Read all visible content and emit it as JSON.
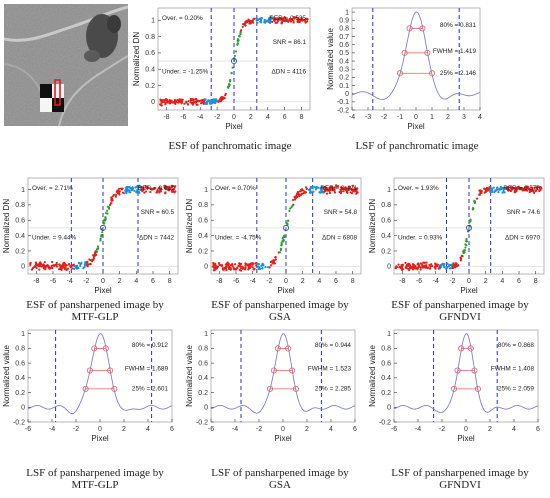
{
  "figure": {
    "satellite_image": {
      "label": "panchromatic image tile with checkerboard target"
    },
    "captions": {
      "esf_pan": "ESF of panchromatic image",
      "lsf_pan": "LSF of panchromatic image",
      "esf_mtf_glp": [
        "ESF of pansharpened image by",
        "MTF-GLP"
      ],
      "esf_gsa": [
        "ESF of pansharpened image by",
        "GSA"
      ],
      "esf_gfndvi": [
        "ESF of pansharpened image by",
        "GFNDVI"
      ],
      "lsf_mtf_glp": [
        "LSF of pansharpened image by",
        "MTF-GLP"
      ],
      "lsf_gsa": [
        "LSF of pansharpened image by",
        "GSA"
      ],
      "lsf_gfndvi": [
        "LSF of pansharpened image by",
        "GFNDVI"
      ]
    },
    "colors": {
      "esf_points": "#e0201b",
      "esf_mid": "#2aa12a",
      "esf_tail": "#1f8fd6",
      "boundary_line": "#2630c8",
      "lsf_line": "#8080c8",
      "lsf_markers": "#e06060",
      "axis": "#333333"
    }
  },
  "chart_data": [
    {
      "id": "esf_pan",
      "type": "scatter",
      "xlabel": "Pixel",
      "ylabel": "Normalized DN",
      "xlim": [
        -9,
        9
      ],
      "ylim": [
        -0.1,
        1.15
      ],
      "xticks": [
        -8,
        -6,
        -4,
        -2,
        0,
        2,
        4,
        6,
        8
      ],
      "yticks": [
        0,
        0.2,
        0.4,
        0.6,
        0.8,
        1
      ],
      "ytick_labels": [
        "0",
        "0.2",
        "0.4",
        "0.6",
        "0.8",
        "1"
      ],
      "boundaries": [
        -2.7,
        0,
        2.7
      ],
      "annotations": [
        "Over. = 0.20%",
        "Under. = -1.25%",
        "RER = 0.535",
        "SNR = 86.1",
        "ΔDN = 4116"
      ],
      "sharpness": 1.3,
      "noise": 0.03
    },
    {
      "id": "lsf_pan",
      "type": "line",
      "xlabel": "Pixel",
      "ylabel": "Normalized value",
      "xlim": [
        -4,
        4
      ],
      "ylim": [
        -0.2,
        1.05
      ],
      "xticks": [
        -4,
        -3,
        -2,
        -1,
        0,
        1,
        2,
        3,
        4
      ],
      "yticks": [
        -0.2,
        -0.1,
        0,
        0.1,
        0.2,
        0.3,
        0.4,
        0.5,
        0.6,
        0.7,
        0.8,
        0.9,
        1
      ],
      "ytick_labels": [
        "-0.2",
        "-0.1",
        "0",
        "0.1",
        "0.2",
        "0.3",
        "0.4",
        "0.5",
        "0.6",
        "0.7",
        "0.8",
        "0.9",
        "1"
      ],
      "boundaries": [
        -2.7,
        2.7
      ],
      "annotations": [
        "80% = 0.831",
        "FWHM = 1.419",
        "25% = 2.146"
      ],
      "fwhm": 1.419
    },
    {
      "id": "esf_mtf_glp",
      "type": "scatter",
      "xlabel": "Pixel",
      "ylabel": "Normalized DN",
      "xlim": [
        -9,
        9
      ],
      "ylim": [
        -0.1,
        1.15
      ],
      "xticks": [
        -8,
        -6,
        -4,
        -2,
        0,
        2,
        4,
        6,
        8
      ],
      "yticks": [
        0,
        0.2,
        0.4,
        0.6,
        0.8,
        1
      ],
      "ytick_labels": [
        "0",
        "0.2",
        "0.4",
        "0.6",
        "0.8",
        "1"
      ],
      "boundaries": [
        -3.8,
        0,
        4.2
      ],
      "annotations": [
        "Over. = 2.71%",
        "Under. = 9.44%",
        "RER = 0.411",
        "SNR = 60.5",
        "ΔDN = 7442"
      ],
      "sharpness": 1.0,
      "noise": 0.04
    },
    {
      "id": "esf_gsa",
      "type": "scatter",
      "xlabel": "Pixel",
      "ylabel": "Normalized DN",
      "xlim": [
        -9,
        9
      ],
      "ylim": [
        -0.1,
        1.15
      ],
      "xticks": [
        -8,
        -6,
        -4,
        -2,
        0,
        2,
        4,
        6,
        8
      ],
      "yticks": [
        0,
        0.2,
        0.4,
        0.6,
        0.8,
        1
      ],
      "ytick_labels": [
        "0",
        "0.2",
        "0.4",
        "0.6",
        "0.8",
        "1"
      ],
      "boundaries": [
        -3.5,
        0,
        3.2
      ],
      "annotations": [
        "Over. = 0.70%",
        "Under. = -4.75%",
        "RER = 0.421",
        "SNR = 54.8",
        "ΔDN = 6808"
      ],
      "sharpness": 1.05,
      "noise": 0.04
    },
    {
      "id": "esf_gfndvi",
      "type": "scatter",
      "xlabel": "Pixel",
      "ylabel": "Normalized DN",
      "xlim": [
        -9,
        9
      ],
      "ylim": [
        -0.1,
        1.15
      ],
      "xticks": [
        -8,
        -6,
        -4,
        -2,
        0,
        2,
        4,
        6,
        8
      ],
      "yticks": [
        0,
        0.2,
        0.4,
        0.6,
        0.8,
        1
      ],
      "ytick_labels": [
        "0",
        "0.2",
        "0.4",
        "0.6",
        "0.8",
        "1"
      ],
      "boundaries": [
        -2.7,
        0,
        2.6
      ],
      "annotations": [
        "Over. = 1.93%",
        "Under. = 0.93%",
        "RER = 0.570",
        "SNR = 74.6",
        "ΔDN = 6970"
      ],
      "sharpness": 1.35,
      "noise": 0.035
    },
    {
      "id": "lsf_mtf_glp",
      "type": "line",
      "xlabel": "Pixel",
      "ylabel": "Normalized value",
      "xlim": [
        -6,
        6
      ],
      "ylim": [
        -0.2,
        1.05
      ],
      "xticks": [
        -6,
        -4,
        -2,
        0,
        2,
        4,
        6
      ],
      "yticks": [
        -0.2,
        0,
        0.2,
        0.4,
        0.6,
        0.8,
        1
      ],
      "ytick_labels": [
        "-0.2",
        "0",
        "0.2",
        "0.4",
        "0.6",
        "0.8",
        "1"
      ],
      "boundaries": [
        -3.7,
        4.3
      ],
      "annotations": [
        "80% = 0.912",
        "FWHM = 1.689",
        "25% = 2.601"
      ],
      "fwhm": 1.689
    },
    {
      "id": "lsf_gsa",
      "type": "line",
      "xlabel": "Pixel",
      "ylabel": "Normalized value",
      "xlim": [
        -6,
        6
      ],
      "ylim": [
        -0.2,
        1.05
      ],
      "xticks": [
        -6,
        -4,
        -2,
        0,
        2,
        4,
        6
      ],
      "yticks": [
        -0.2,
        0,
        0.2,
        0.4,
        0.6,
        0.8,
        1
      ],
      "ytick_labels": [
        "-0.2",
        "0",
        "0.2",
        "0.4",
        "0.6",
        "0.8",
        "1"
      ],
      "boundaries": [
        -3.5,
        3.2
      ],
      "annotations": [
        "80% = 0.944",
        "FWHM = 1.523",
        "25% = 2.285"
      ],
      "fwhm": 1.523
    },
    {
      "id": "lsf_gfndvi",
      "type": "line",
      "xlabel": "Pixel",
      "ylabel": "Normalized value",
      "xlim": [
        -6,
        6
      ],
      "ylim": [
        -0.2,
        1.05
      ],
      "xticks": [
        -6,
        -4,
        -2,
        0,
        2,
        4,
        6
      ],
      "yticks": [
        -0.2,
        0,
        0.2,
        0.4,
        0.6,
        0.8,
        1
      ],
      "ytick_labels": [
        "-0.2",
        "0",
        "0.2",
        "0.4",
        "0.6",
        "0.8",
        "1"
      ],
      "boundaries": [
        -2.7,
        2.6
      ],
      "annotations": [
        "80% = 0.868",
        "FWHM = 1.408",
        "25% = 2.059"
      ],
      "fwhm": 1.408
    }
  ]
}
